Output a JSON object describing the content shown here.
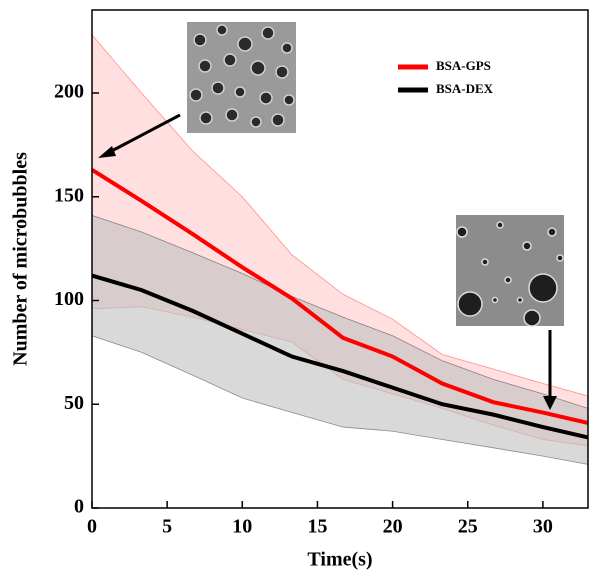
{
  "chart_data": {
    "type": "line",
    "x_label": "Time(s)",
    "y_label": "Number of microbubbles",
    "x": [
      0,
      3.3,
      6.7,
      10,
      13.3,
      16.7,
      20,
      23.3,
      26.7,
      30,
      33
    ],
    "series": [
      {
        "name": "BSA-GPS",
        "color": "#ff0000",
        "band_color": "#ffc9c9",
        "values": [
          163,
          148,
          132,
          116,
          101,
          82,
          73,
          60,
          51,
          46,
          41
        ],
        "upper": [
          228,
          200,
          172,
          150,
          122,
          103,
          91,
          74,
          67,
          60,
          54
        ],
        "lower": [
          96,
          97,
          92,
          86,
          80,
          62,
          55,
          48,
          40,
          33,
          30
        ]
      },
      {
        "name": "BSA-DEX",
        "color": "#000000",
        "band_color": "#bfbfbf",
        "values": [
          112,
          105,
          95,
          84,
          73,
          66,
          58,
          50,
          45,
          39,
          34
        ],
        "upper": [
          141,
          133,
          123,
          113,
          102,
          92,
          83,
          71,
          62,
          55,
          48
        ],
        "lower": [
          83,
          75,
          64,
          53,
          46,
          39,
          37,
          33,
          29,
          25,
          21
        ]
      }
    ],
    "xlim": [
      0,
      33
    ],
    "ylim": [
      0,
      240
    ],
    "xticks": [
      0,
      5,
      10,
      15,
      20,
      25,
      30
    ],
    "yticks": [
      0,
      50,
      100,
      150,
      200
    ],
    "legend": "upper-right"
  }
}
